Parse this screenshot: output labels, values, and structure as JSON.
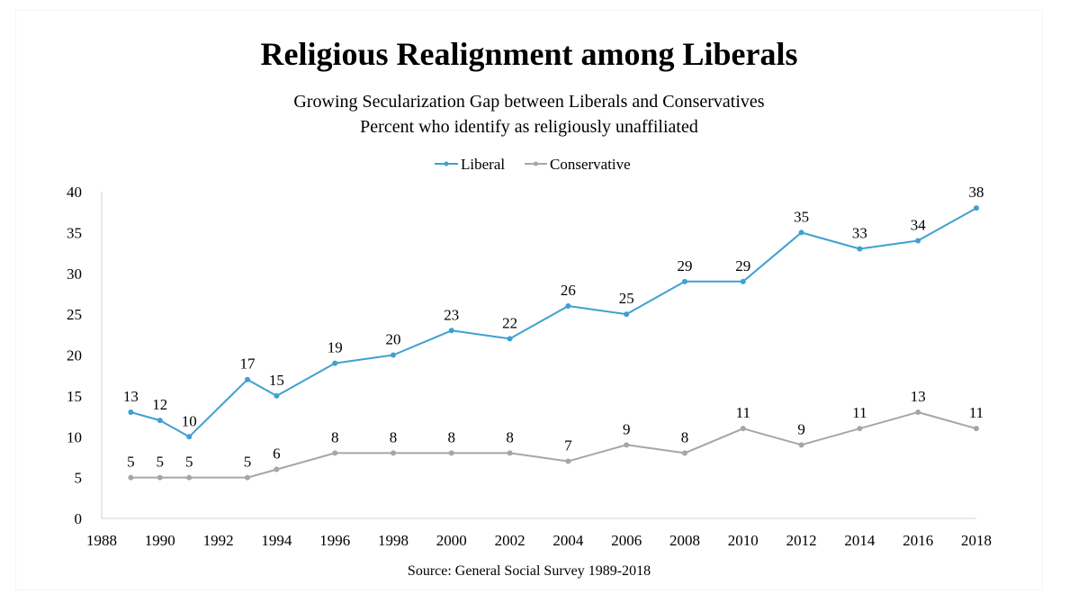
{
  "chart_data": {
    "type": "line",
    "title": "Religious Realignment among Liberals",
    "subtitle_line1": "Growing Secularization Gap between Liberals and Conservatives",
    "subtitle_line2": "Percent who identify as religiously unaffiliated",
    "source": "Source: General Social Survey 1989-2018",
    "legend_position": "top-center",
    "grid": false,
    "xlim": [
      1988,
      2018
    ],
    "ylim": [
      0,
      40
    ],
    "x_ticks": [
      1988,
      1990,
      1992,
      1994,
      1996,
      1998,
      2000,
      2002,
      2004,
      2006,
      2008,
      2010,
      2012,
      2014,
      2016,
      2018
    ],
    "y_ticks": [
      0,
      5,
      10,
      15,
      20,
      25,
      30,
      35,
      40
    ],
    "x": [
      1989,
      1990,
      1991,
      1993,
      1994,
      1996,
      1998,
      2000,
      2002,
      2004,
      2006,
      2008,
      2010,
      2012,
      2014,
      2016,
      2018
    ],
    "series": [
      {
        "name": "Liberal",
        "color": "#3fa0d1",
        "values": [
          13,
          12,
          10,
          17,
          15,
          19,
          20,
          23,
          22,
          26,
          25,
          29,
          29,
          35,
          33,
          34,
          38
        ]
      },
      {
        "name": "Conservative",
        "color": "#a6a6a6",
        "values": [
          5,
          5,
          5,
          5,
          6,
          8,
          8,
          8,
          8,
          7,
          9,
          8,
          11,
          9,
          11,
          13,
          11
        ]
      }
    ]
  }
}
